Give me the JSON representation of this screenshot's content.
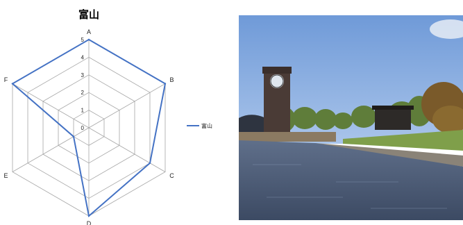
{
  "chart_data": {
    "type": "radar",
    "title": "富山",
    "categories": [
      "A",
      "B",
      "C",
      "D",
      "E",
      "F"
    ],
    "series": [
      {
        "name": "富山",
        "values": [
          5,
          5,
          4,
          5,
          1,
          5
        ],
        "color": "#4472C4"
      }
    ],
    "rlim": [
      0,
      5
    ],
    "ticks": [
      "0",
      "1",
      "2",
      "3",
      "4",
      "5"
    ],
    "grid": true,
    "legend": "right"
  },
  "photo": {
    "subject": "riverside-park-with-clock-tower"
  }
}
